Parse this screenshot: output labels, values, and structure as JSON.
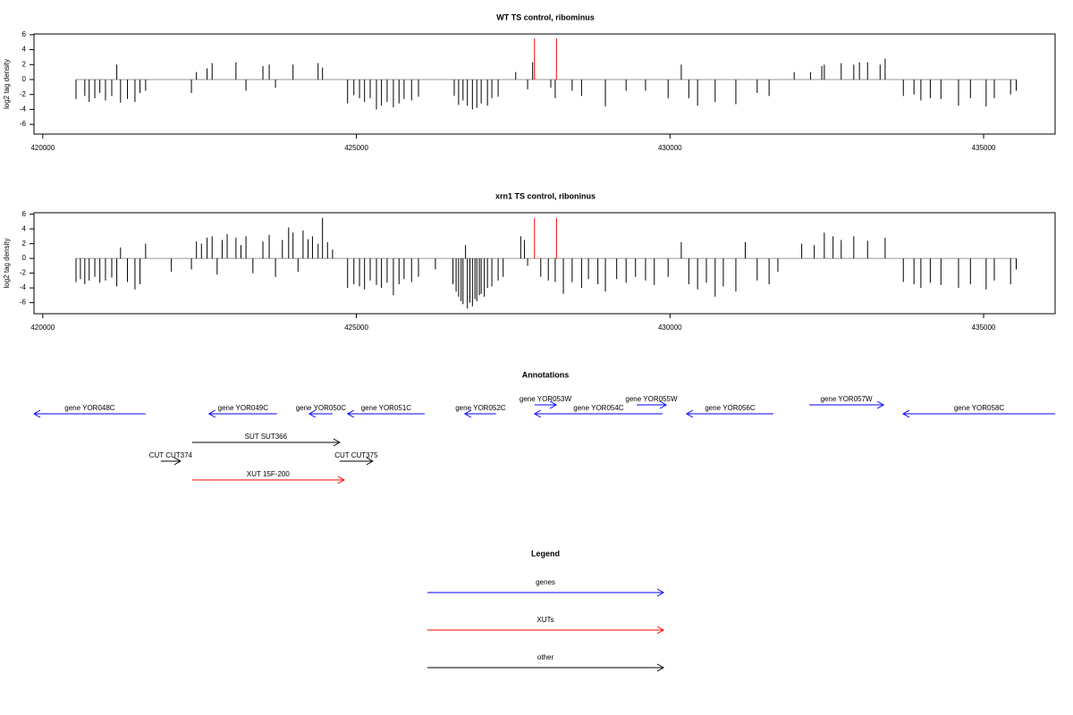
{
  "chart_data": [
    {
      "type": "bar",
      "title": "WT TS control, ribominus",
      "ylabel": "log2 tag density",
      "xlim": [
        419860,
        436140
      ],
      "ylim": [
        -7.3,
        6.1
      ],
      "xticks": [
        420000,
        425000,
        430000,
        435000
      ],
      "yticks": [
        6,
        4,
        2,
        0,
        -2,
        -4,
        -6
      ],
      "series": [
        {
          "color": "#000000",
          "x": [
            420530,
            420670,
            420740,
            420830,
            420910,
            421000,
            421100,
            421180,
            421240,
            421350,
            421470,
            421550,
            421640,
            422370,
            422450,
            422620,
            422700,
            423080,
            423240,
            423510,
            423610,
            423710,
            423990,
            424390,
            424460,
            424860,
            424960,
            425050,
            425130,
            425220,
            425320,
            425400,
            425490,
            425590,
            425680,
            425760,
            425880,
            425990,
            426560,
            426630,
            426700,
            426770,
            426850,
            426920,
            426990,
            427090,
            427160,
            427260,
            427540,
            427730,
            427810,
            428100,
            428170,
            428440,
            428590,
            428970,
            429300,
            429610,
            429970,
            430180,
            430300,
            430440,
            430720,
            431050,
            431390,
            431580,
            431980,
            432240,
            432420,
            432460,
            432730,
            432930,
            433020,
            433150,
            433350,
            433430,
            433720,
            433890,
            434000,
            434150,
            434320,
            434600,
            434790,
            435040,
            435170,
            435430,
            435520
          ],
          "values": [
            -2.6,
            -2.2,
            -3.0,
            -2.5,
            -1.8,
            -2.8,
            -2.2,
            2.0,
            -3.1,
            -2.6,
            -3.0,
            -1.8,
            -1.5,
            -1.8,
            1.0,
            1.5,
            2.2,
            2.3,
            -1.5,
            1.8,
            2.0,
            -1.1,
            2.0,
            2.2,
            1.6,
            -3.2,
            -2.1,
            -2.5,
            -3.0,
            -2.5,
            -4.0,
            -3.5,
            -3.0,
            -3.7,
            -3.2,
            -2.6,
            -2.8,
            -2.3,
            -2.2,
            -3.4,
            -2.8,
            -3.5,
            -4.0,
            -3.8,
            -3.2,
            -3.5,
            -2.5,
            -2.3,
            1.0,
            -1.3,
            2.3,
            -1.1,
            -2.5,
            -1.5,
            -2.2,
            -3.6,
            -1.5,
            -1.5,
            -2.5,
            2.0,
            -2.5,
            -3.5,
            -3.0,
            -3.3,
            -1.8,
            -2.2,
            1.0,
            1.0,
            1.8,
            2.0,
            2.2,
            2.0,
            2.3,
            2.3,
            2.0,
            2.8,
            -2.2,
            -2.0,
            -2.8,
            -2.5,
            -2.6,
            -3.5,
            -2.5,
            -3.6,
            -2.5,
            -2.0,
            -1.5
          ]
        },
        {
          "color": "#ff0000",
          "x": [
            427840,
            428190
          ],
          "values": [
            5.5,
            5.5
          ]
        }
      ]
    },
    {
      "type": "bar",
      "title": "xrn1 TS control, riboninus",
      "ylabel": "log2 tag density",
      "xlim": [
        419860,
        436140
      ],
      "ylim": [
        -7.5,
        6.2
      ],
      "xticks": [
        420000,
        425000,
        430000,
        435000
      ],
      "yticks": [
        6,
        4,
        2,
        0,
        -2,
        -4,
        -6
      ],
      "series": [
        {
          "color": "#000000",
          "x": [
            420530,
            420600,
            420670,
            420740,
            420830,
            420910,
            421000,
            421100,
            421180,
            421240,
            421350,
            421470,
            421550,
            421640,
            422050,
            422370,
            422450,
            422530,
            422620,
            422700,
            422780,
            422860,
            422940,
            423080,
            423160,
            423240,
            423350,
            423510,
            423610,
            423710,
            423820,
            423920,
            423990,
            424070,
            424150,
            424230,
            424300,
            424390,
            424460,
            424540,
            424620,
            424860,
            424960,
            425050,
            425130,
            425220,
            425320,
            425400,
            425490,
            425590,
            425680,
            425760,
            425880,
            425990,
            426260,
            426540,
            426590,
            426630,
            426670,
            426700,
            426740,
            426770,
            426810,
            426850,
            426890,
            426920,
            426960,
            426990,
            427040,
            427090,
            427160,
            427260,
            427340,
            427620,
            427680,
            427730,
            427940,
            428060,
            428170,
            428300,
            428440,
            428590,
            428700,
            428850,
            428970,
            429150,
            429300,
            429450,
            429610,
            429750,
            429970,
            430180,
            430300,
            430440,
            430580,
            430720,
            430850,
            431050,
            431200,
            431390,
            431580,
            431720,
            432100,
            432300,
            432460,
            432600,
            432730,
            432930,
            433150,
            433430,
            433720,
            433890,
            434000,
            434150,
            434320,
            434600,
            434790,
            435040,
            435170,
            435430,
            435520
          ],
          "values": [
            -3.2,
            -2.8,
            -3.5,
            -3.0,
            -2.5,
            -3.3,
            -3.0,
            -2.6,
            -3.8,
            1.5,
            -3.2,
            -4.2,
            -3.5,
            2.0,
            -1.8,
            -1.5,
            2.3,
            2.0,
            2.8,
            3.0,
            -2.2,
            2.5,
            3.3,
            2.8,
            1.8,
            3.0,
            -2.0,
            2.3,
            3.2,
            -2.5,
            2.5,
            4.2,
            3.5,
            -1.8,
            3.8,
            2.6,
            3.0,
            2.0,
            5.5,
            2.2,
            1.2,
            -4.0,
            -3.5,
            -3.8,
            -4.2,
            -3.0,
            -3.6,
            -4.0,
            -3.3,
            -5.0,
            -3.5,
            -2.8,
            -3.2,
            -2.5,
            -1.5,
            -3.5,
            -4.5,
            -5.2,
            -5.8,
            -6.2,
            1.8,
            -6.8,
            -6.0,
            -6.5,
            -5.5,
            -5.8,
            -5.0,
            -4.8,
            -5.2,
            -4.0,
            -3.8,
            -3.0,
            -2.5,
            3.0,
            2.5,
            -1.0,
            -2.5,
            -3.0,
            -3.2,
            -4.8,
            -3.2,
            -4.0,
            -2.8,
            -3.5,
            -4.5,
            -2.8,
            -3.3,
            -2.5,
            -3.0,
            -3.6,
            -2.5,
            2.2,
            -3.5,
            -4.2,
            -3.3,
            -5.2,
            -3.8,
            -4.5,
            2.2,
            -3.0,
            -3.5,
            -1.8,
            2.0,
            1.8,
            3.5,
            3.0,
            2.5,
            3.0,
            2.4,
            2.8,
            -3.2,
            -3.5,
            -4.0,
            -3.3,
            -3.6,
            -4.0,
            -3.5,
            -4.2,
            -3.0,
            -3.5,
            -1.5
          ]
        },
        {
          "color": "#ff0000",
          "x": [
            427840,
            428190
          ],
          "values": [
            5.5,
            5.5
          ]
        }
      ]
    }
  ],
  "annotations": {
    "title": "Annotations",
    "features": [
      {
        "label": "gene YOR048C",
        "start": 421640,
        "end": 419860,
        "color": "#0000ff"
      },
      {
        "label": "gene YOR049C",
        "start": 423735,
        "end": 422652,
        "color": "#0000ff"
      },
      {
        "label": "gene YOR050C",
        "start": 424620,
        "end": 424249,
        "color": "#0000ff"
      },
      {
        "label": "gene YOR051C",
        "start": 426089,
        "end": 424862,
        "color": "#0000ff"
      },
      {
        "label": "gene YOR052C",
        "start": 427229,
        "end": 426730,
        "color": "#0000ff"
      },
      {
        "label": "gene YOR053W",
        "start": 427842,
        "end": 428185,
        "color": "#0000ff"
      },
      {
        "label": "gene YOR054C",
        "start": 429881,
        "end": 427842,
        "color": "#0000ff"
      },
      {
        "label": "gene YOR055W",
        "start": 429468,
        "end": 429938,
        "color": "#0000ff"
      },
      {
        "label": "gene YOR056C",
        "start": 431650,
        "end": 430266,
        "color": "#0000ff"
      },
      {
        "label": "gene YOR057W",
        "start": 432220,
        "end": 433404,
        "color": "#0000ff"
      },
      {
        "label": "gene YOR058C",
        "start": 436140,
        "end": 433717,
        "color": "#0000ff"
      },
      {
        "label": "SUT SUT366",
        "start": 422381,
        "end": 424734,
        "color": "#000000"
      },
      {
        "label": "CUT CUT374",
        "start": 421882,
        "end": 422196,
        "color": "#000000"
      },
      {
        "label": "CUT CUT375",
        "start": 424734,
        "end": 425261,
        "color": "#000000"
      },
      {
        "label": "XUT 15F-200",
        "start": 422381,
        "end": 424805,
        "color": "#ff0000"
      }
    ]
  },
  "legend": {
    "title": "Legend",
    "items": [
      {
        "label": "genes",
        "color": "#0000ff"
      },
      {
        "label": "XUTs",
        "color": "#ff0000"
      },
      {
        "label": "other",
        "color": "#000000"
      }
    ]
  }
}
